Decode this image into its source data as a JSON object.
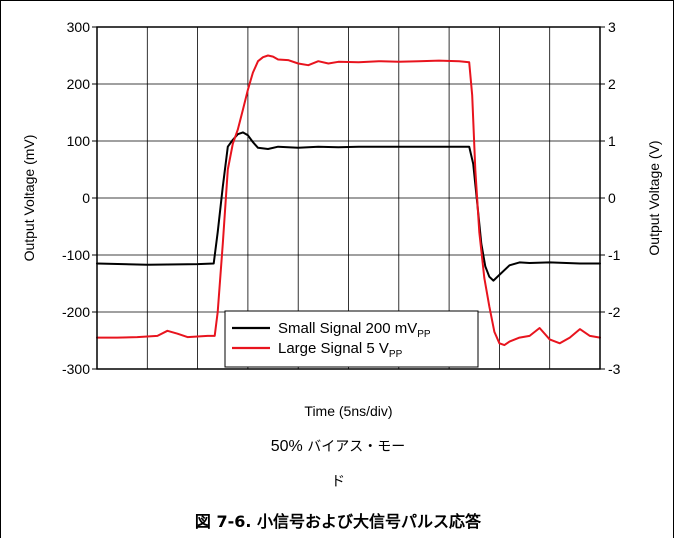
{
  "chart_data": {
    "type": "line",
    "xlabel": "Time (5ns/div)",
    "ylabel_left": "Output Voltage (mV)",
    "ylabel_right": "Output Voltage (V)",
    "x_range": [
      0,
      50
    ],
    "x_divisions": 10,
    "ylim_left": [
      -300,
      300
    ],
    "ylim_right": [
      -3,
      3
    ],
    "yticks_left": [
      300,
      200,
      100,
      0,
      -100,
      -200,
      -300
    ],
    "yticks_left_labels": [
      "300",
      "200",
      "100",
      "0",
      "-100",
      "-200",
      "-300"
    ],
    "yticks_right": [
      3,
      2,
      1,
      0,
      -1,
      -2,
      -3
    ],
    "yticks_right_labels": [
      "3",
      "2",
      "1",
      "0",
      "-1",
      "-2",
      "-3"
    ],
    "grid": true,
    "legend_position": "bottom-center",
    "series": [
      {
        "name": "Small Signal 200 mV",
        "name_subscript": "PP",
        "color": "#000000",
        "axis": "left",
        "x": [
          0,
          5,
          10,
          11.6,
          12.0,
          12.5,
          13.0,
          13.5,
          14.0,
          14.5,
          15.0,
          15.5,
          16.0,
          17.0,
          18,
          20,
          22,
          24,
          26,
          28,
          30,
          32,
          34,
          36,
          37.0,
          37.4,
          37.8,
          38.2,
          38.6,
          39.0,
          39.4,
          40.0,
          41.0,
          42.0,
          43,
          45,
          48,
          50
        ],
        "y": [
          -115,
          -117,
          -116,
          -115,
          -60,
          20,
          90,
          102,
          112,
          115,
          110,
          98,
          88,
          86,
          90,
          88,
          90,
          89,
          90,
          90,
          90,
          90,
          90,
          90,
          90,
          60,
          -10,
          -80,
          -120,
          -138,
          -145,
          -135,
          -118,
          -113,
          -114,
          -113,
          -115,
          -115
        ]
      },
      {
        "name": "Large Signal 5 V",
        "name_subscript": "PP",
        "color": "#e8141e",
        "axis": "right",
        "x": [
          0,
          2,
          4,
          6,
          7,
          8,
          9,
          10,
          11,
          11.7,
          12.0,
          12.5,
          13.0,
          13.5,
          14.0,
          14.5,
          15.0,
          15.5,
          16.0,
          16.5,
          17.0,
          17.5,
          18.0,
          19,
          20,
          21,
          22,
          23,
          24,
          26,
          28,
          30,
          32,
          34,
          36,
          37.0,
          37.3,
          37.6,
          38.0,
          38.5,
          39.0,
          39.5,
          40.0,
          40.5,
          41,
          42,
          43,
          44,
          45,
          46,
          47,
          48,
          49,
          50
        ],
        "y": [
          -2.45,
          -2.45,
          -2.44,
          -2.42,
          -2.33,
          -2.38,
          -2.44,
          -2.43,
          -2.42,
          -2.42,
          -2.0,
          -0.8,
          0.5,
          0.95,
          1.2,
          1.55,
          1.9,
          2.2,
          2.4,
          2.47,
          2.5,
          2.48,
          2.43,
          2.42,
          2.36,
          2.33,
          2.4,
          2.36,
          2.39,
          2.38,
          2.4,
          2.39,
          2.4,
          2.41,
          2.4,
          2.38,
          1.8,
          0.5,
          -0.6,
          -1.4,
          -1.9,
          -2.35,
          -2.55,
          -2.58,
          -2.52,
          -2.45,
          -2.42,
          -2.28,
          -2.48,
          -2.55,
          -2.45,
          -2.3,
          -2.42,
          -2.45
        ]
      }
    ]
  },
  "caption": {
    "line1_prefix": "50%",
    "line1_rest": " バイアス・モー",
    "line2": "ド"
  },
  "figure_title": "図 7-6. 小信号および大信号パルス応答"
}
